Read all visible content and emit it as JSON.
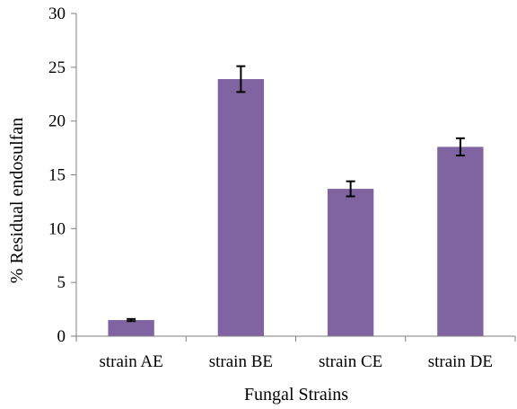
{
  "chart_data": {
    "type": "bar",
    "categories": [
      "strain AE",
      "strain BE",
      "strain CE",
      "strain DE"
    ],
    "values": [
      1.5,
      23.9,
      13.7,
      17.6
    ],
    "errors": [
      0.1,
      1.2,
      0.7,
      0.8
    ],
    "xlabel": "Fungal Strains",
    "ylabel": "% Residual endosulfan",
    "ylim": [
      0,
      30
    ],
    "yticks": [
      0,
      5,
      10,
      15,
      20,
      25,
      30
    ],
    "grid": false,
    "legend": "none",
    "bar_color": "#8064a2"
  }
}
